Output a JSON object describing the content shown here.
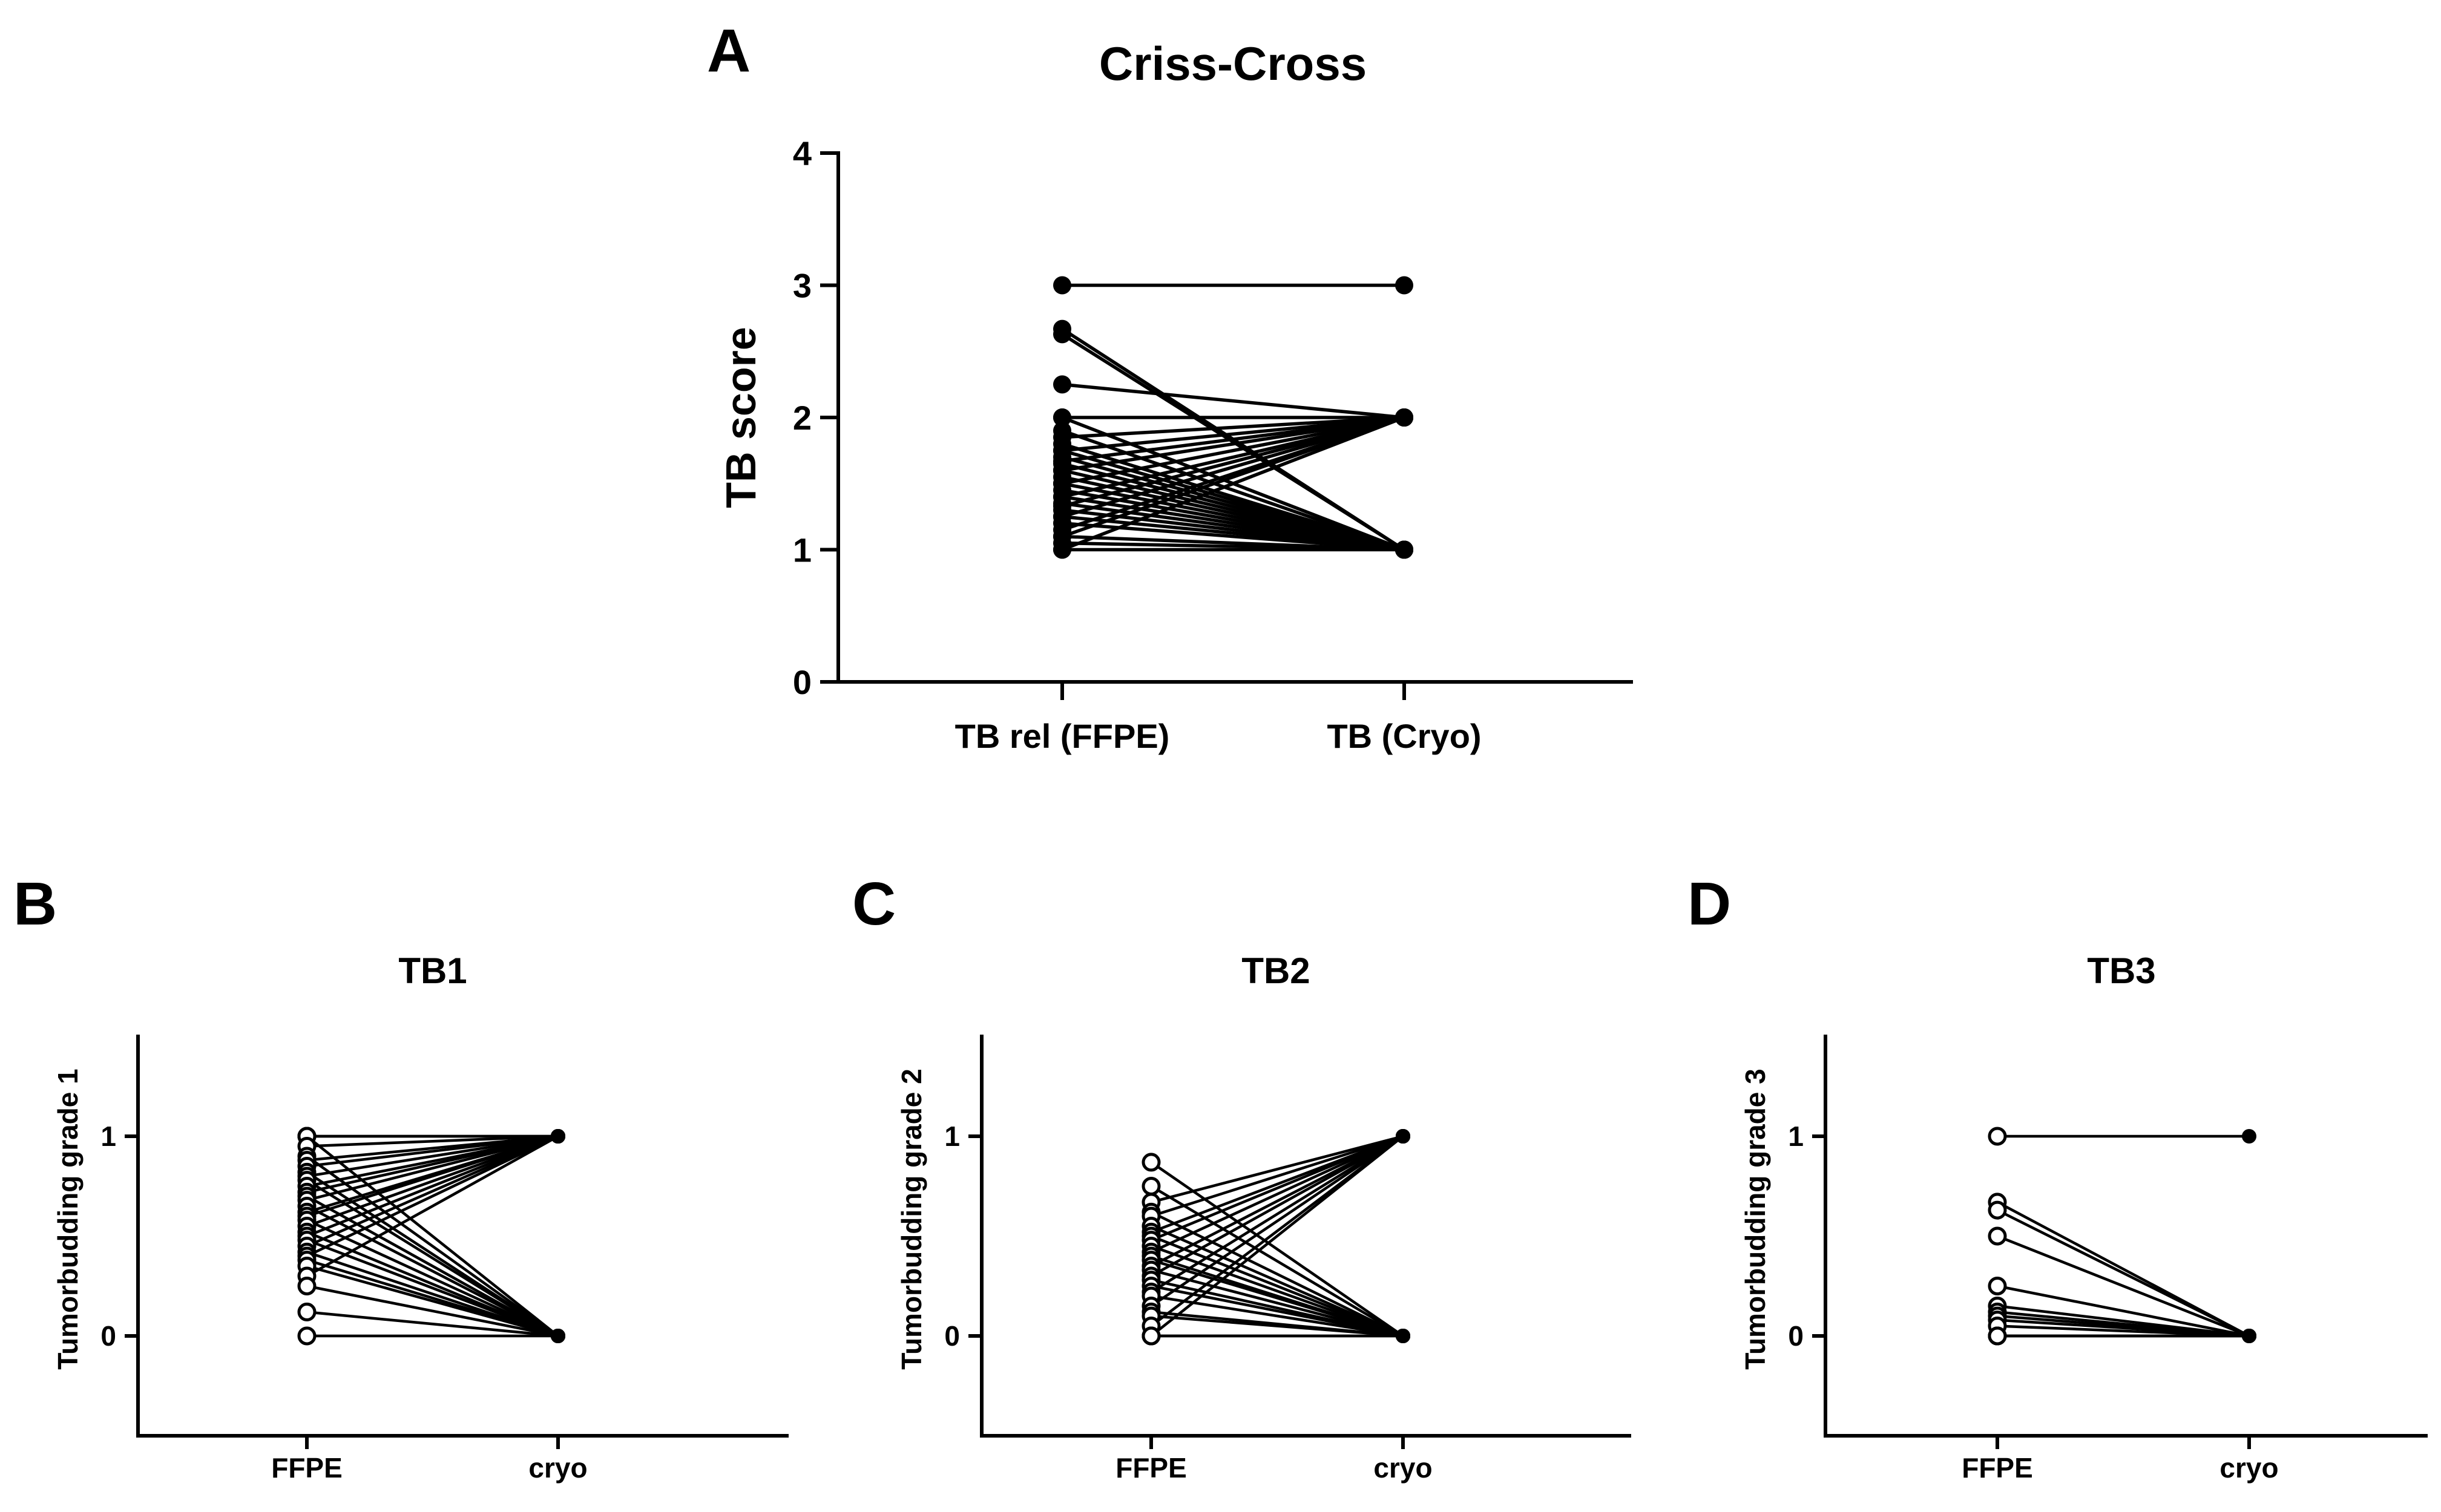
{
  "chart_data": [
    {
      "panel": "A",
      "type": "line",
      "title": "Criss-Cross",
      "xlabel": "",
      "ylabel": "TB score",
      "categories": [
        "TB rel (FFPE)",
        "TB (Cryo)"
      ],
      "ylim": [
        0,
        4
      ],
      "yticks": [
        0,
        1,
        2,
        3,
        4
      ],
      "ytick_labels": [
        "0",
        "1",
        "2",
        "3",
        "4"
      ],
      "marker": "filled",
      "pairs": [
        [
          3,
          3
        ],
        [
          2.67,
          1
        ],
        [
          2.63,
          1
        ],
        [
          2.25,
          2
        ],
        [
          2,
          2
        ],
        [
          2,
          1
        ],
        [
          1.9,
          1
        ],
        [
          1.85,
          2
        ],
        [
          1.8,
          1
        ],
        [
          1.75,
          2
        ],
        [
          1.75,
          1
        ],
        [
          1.7,
          1
        ],
        [
          1.67,
          2
        ],
        [
          1.65,
          1
        ],
        [
          1.6,
          2
        ],
        [
          1.6,
          1
        ],
        [
          1.55,
          1
        ],
        [
          1.5,
          2
        ],
        [
          1.5,
          1
        ],
        [
          1.45,
          1
        ],
        [
          1.4,
          2
        ],
        [
          1.4,
          1
        ],
        [
          1.35,
          1
        ],
        [
          1.33,
          2
        ],
        [
          1.3,
          1
        ],
        [
          1.25,
          1
        ],
        [
          1.25,
          2
        ],
        [
          1.2,
          1
        ],
        [
          1.15,
          2
        ],
        [
          1.1,
          1
        ],
        [
          1.1,
          2
        ],
        [
          1.05,
          1
        ],
        [
          1,
          1
        ],
        [
          1,
          2
        ]
      ]
    },
    {
      "panel": "B",
      "type": "line",
      "title": "TB1",
      "xlabel": "",
      "ylabel": "Tumorbudding grade 1",
      "categories": [
        "FFPE",
        "cryo"
      ],
      "ylim": [
        -0.5,
        1.5
      ],
      "yticks": [
        0,
        1
      ],
      "ytick_labels": [
        "0",
        "1"
      ],
      "marker": "open-filled",
      "pairs": [
        [
          1,
          1
        ],
        [
          1,
          0
        ],
        [
          1,
          1
        ],
        [
          0.95,
          1
        ],
        [
          0.9,
          0
        ],
        [
          0.88,
          1
        ],
        [
          0.85,
          1
        ],
        [
          0.82,
          0
        ],
        [
          0.8,
          1
        ],
        [
          0.78,
          0
        ],
        [
          0.75,
          1
        ],
        [
          0.72,
          1
        ],
        [
          0.7,
          0
        ],
        [
          0.68,
          1
        ],
        [
          0.65,
          0
        ],
        [
          0.62,
          1
        ],
        [
          0.6,
          1
        ],
        [
          0.58,
          0
        ],
        [
          0.55,
          1
        ],
        [
          0.52,
          0
        ],
        [
          0.5,
          1
        ],
        [
          0.48,
          0
        ],
        [
          0.45,
          1
        ],
        [
          0.42,
          0
        ],
        [
          0.4,
          1
        ],
        [
          0.38,
          0
        ],
        [
          0.35,
          0
        ],
        [
          0.3,
          1
        ],
        [
          0.25,
          0
        ],
        [
          0.12,
          0
        ],
        [
          0,
          0
        ]
      ]
    },
    {
      "panel": "C",
      "type": "line",
      "title": "TB2",
      "xlabel": "",
      "ylabel": "Tumorbudding grade 2",
      "categories": [
        "FFPE",
        "cryo"
      ],
      "ylim": [
        -0.5,
        1.5
      ],
      "yticks": [
        0,
        1
      ],
      "ytick_labels": [
        "0",
        "1"
      ],
      "marker": "open-filled",
      "pairs": [
        [
          0.87,
          0
        ],
        [
          0.75,
          0
        ],
        [
          0.67,
          1
        ],
        [
          0.62,
          0
        ],
        [
          0.6,
          1
        ],
        [
          0.55,
          0
        ],
        [
          0.52,
          1
        ],
        [
          0.5,
          0
        ],
        [
          0.48,
          1
        ],
        [
          0.45,
          0
        ],
        [
          0.42,
          1
        ],
        [
          0.4,
          0
        ],
        [
          0.38,
          0
        ],
        [
          0.35,
          1
        ],
        [
          0.33,
          0
        ],
        [
          0.3,
          1
        ],
        [
          0.28,
          0
        ],
        [
          0.25,
          0
        ],
        [
          0.22,
          1
        ],
        [
          0.2,
          0
        ],
        [
          0.15,
          1
        ],
        [
          0.12,
          0
        ],
        [
          0.1,
          0
        ],
        [
          0.05,
          1
        ],
        [
          0,
          0
        ],
        [
          0,
          1
        ],
        [
          0,
          0
        ]
      ]
    },
    {
      "panel": "D",
      "type": "line",
      "title": "TB3",
      "xlabel": "",
      "ylabel": "Tumorbudding grade 3",
      "categories": [
        "FFPE",
        "cryo"
      ],
      "ylim": [
        -0.5,
        1.5
      ],
      "yticks": [
        0,
        1
      ],
      "ytick_labels": [
        "0",
        "1"
      ],
      "marker": "open-filled",
      "pairs": [
        [
          1,
          1
        ],
        [
          0.67,
          0
        ],
        [
          0.63,
          0
        ],
        [
          0.5,
          0
        ],
        [
          0.25,
          0
        ],
        [
          0.15,
          0
        ],
        [
          0.12,
          0
        ],
        [
          0.1,
          0
        ],
        [
          0.08,
          0
        ],
        [
          0.05,
          0
        ],
        [
          0,
          0
        ],
        [
          0,
          0
        ],
        [
          0,
          0
        ]
      ]
    }
  ]
}
